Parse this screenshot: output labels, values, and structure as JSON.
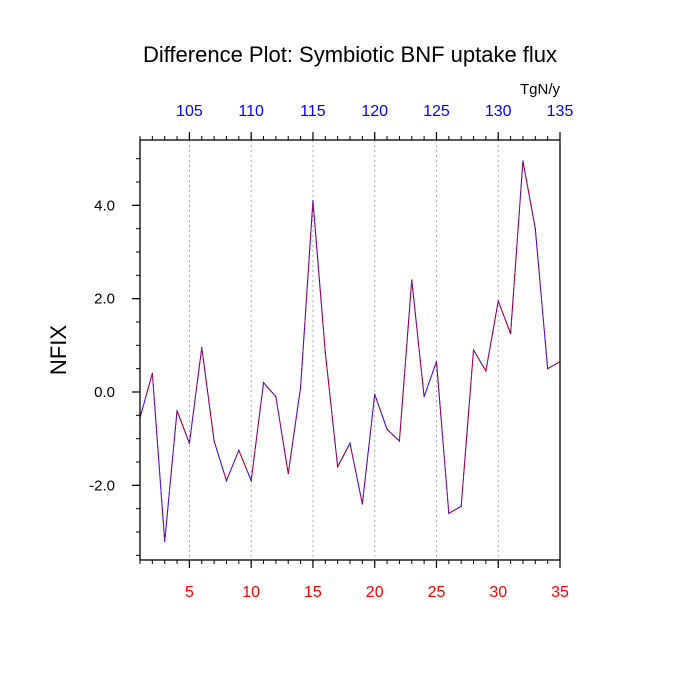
{
  "chart_data": {
    "type": "line",
    "title": "Difference Plot: Symbiotic BNF uptake flux",
    "units": "TgN/y",
    "ylabel": "NFIX",
    "xlabel": "",
    "x": [
      1,
      2,
      3,
      4,
      5,
      6,
      7,
      8,
      9,
      10,
      11,
      12,
      13,
      14,
      15,
      16,
      17,
      18,
      19,
      20,
      21,
      22,
      23,
      24,
      25,
      26,
      27,
      28,
      29,
      30,
      31,
      32,
      33,
      34,
      35
    ],
    "series": [
      {
        "values": [
          -0.55,
          0.4,
          -3.2,
          -0.4,
          -1.1,
          0.95,
          -1.05,
          -1.9,
          -1.25,
          -1.9,
          0.2,
          -0.1,
          -1.75,
          0.1,
          4.1,
          0.85,
          -1.6,
          -1.1,
          -2.4,
          -0.05,
          -0.8,
          -1.05,
          2.4,
          -0.1,
          0.65,
          -2.6,
          -2.45,
          0.9,
          0.45,
          1.95,
          1.25,
          4.95,
          3.5,
          0.5,
          0.65
        ],
        "line_color": "#0000ff",
        "dash_color": "#ff0000",
        "style": "dashed"
      }
    ],
    "xlim": [
      1,
      35
    ],
    "ylim": [
      -3.6,
      5.4
    ],
    "x_ticks_bottom": [
      "5",
      "10",
      "15",
      "20",
      "25",
      "30",
      "35"
    ],
    "x_ticks_bottom_values": [
      5,
      10,
      15,
      20,
      25,
      30,
      35
    ],
    "x_ticks_bottom_color": "#ff0000",
    "x_ticks_top": [
      "105",
      "110",
      "115",
      "120",
      "125",
      "130",
      "135"
    ],
    "x_ticks_top_values": [
      5,
      10,
      15,
      20,
      25,
      30,
      35
    ],
    "x_ticks_top_color": "#0000ff",
    "y_ticks": [
      "4.0",
      "2.0",
      "0.0",
      "-2.0"
    ],
    "y_ticks_values": [
      4,
      2,
      0,
      -2
    ],
    "grid": "vertical-dotted",
    "legend": "none"
  }
}
